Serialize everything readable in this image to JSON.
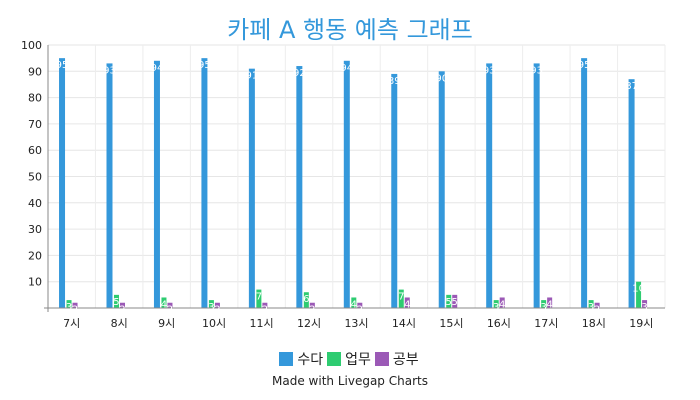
{
  "chart_data": {
    "type": "bar",
    "title": "카페 A 행동 예측 그래프",
    "categories": [
      "7시",
      "8시",
      "9시",
      "10시",
      "11시",
      "12시",
      "13시",
      "14시",
      "15시",
      "16시",
      "17시",
      "18시",
      "19시"
    ],
    "series": [
      {
        "name": "수다",
        "color": "#3498db",
        "values": [
          95,
          93,
          94,
          95,
          91,
          92,
          94,
          89,
          90,
          93,
          93,
          95,
          87
        ]
      },
      {
        "name": "업무",
        "color": "#2ecc71",
        "values": [
          3,
          5,
          4,
          3,
          7,
          6,
          4,
          7,
          5,
          3,
          3,
          3,
          10
        ]
      },
      {
        "name": "공부",
        "color": "#9b59b6",
        "values": [
          2,
          2,
          2,
          2,
          2,
          2,
          2,
          4,
          5,
          4,
          4,
          2,
          3
        ]
      }
    ],
    "ylim": [
      0,
      100
    ],
    "yticks": [
      10,
      20,
      30,
      40,
      50,
      60,
      70,
      80,
      90,
      100
    ],
    "grid": true,
    "legend": "bottom-center",
    "credit": "Made with Livegap Charts"
  }
}
